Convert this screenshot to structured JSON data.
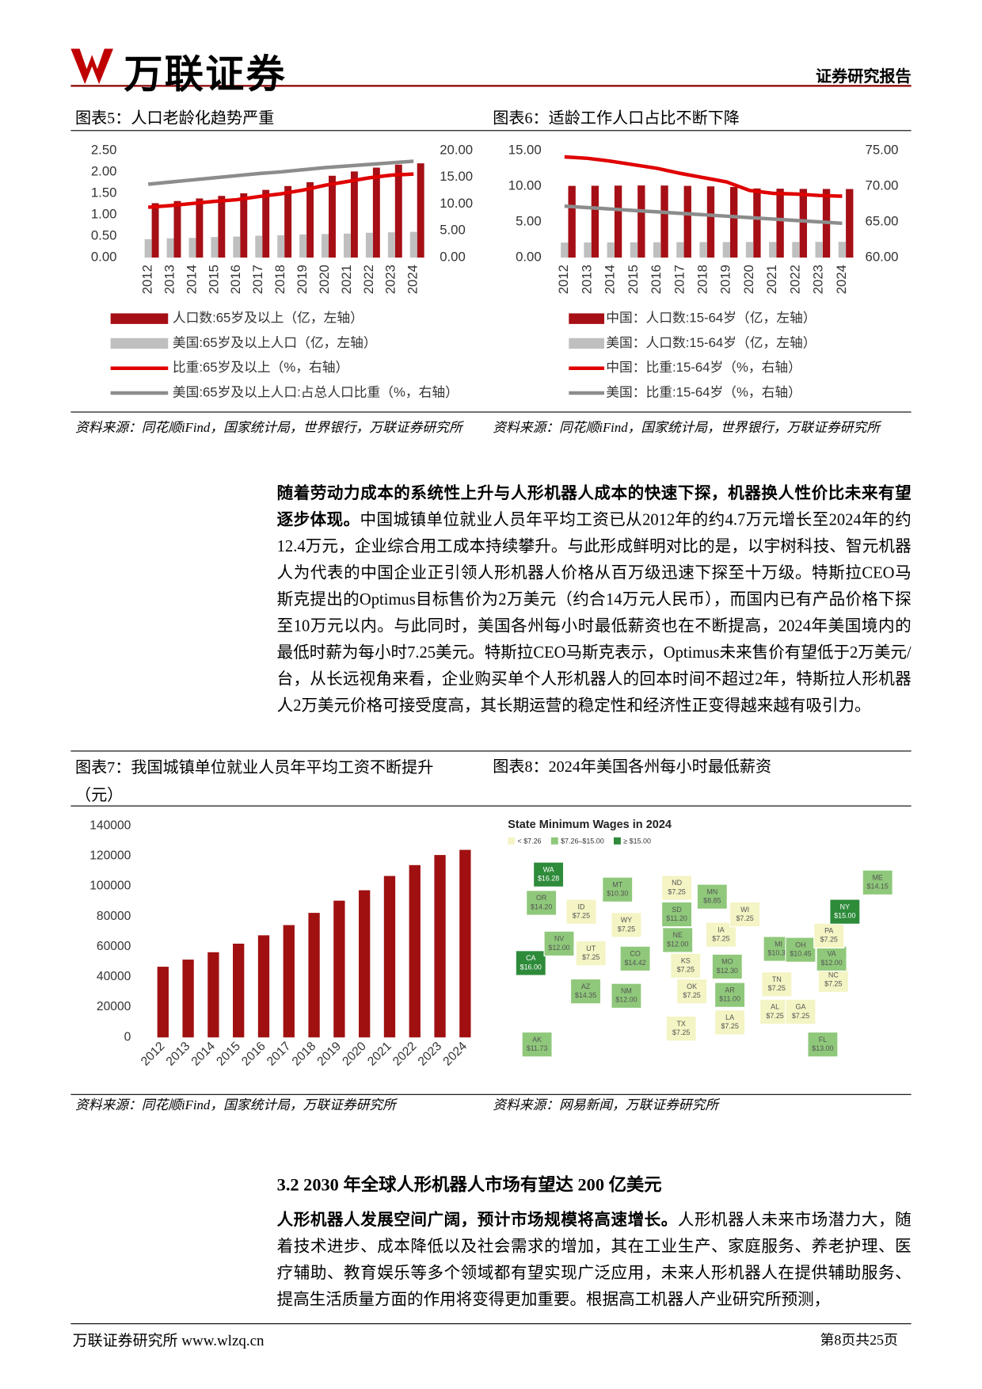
{
  "header": {
    "logo": "万联证券",
    "report_type": "证券研究报告"
  },
  "chart_data": [
    {
      "type": "combo",
      "title": "图表5：人口老龄化趋势严重",
      "source": "资料来源：同花顺iFind，国家统计局，世界银行，万联证券研究所",
      "categories": [
        "2012",
        "2013",
        "2014",
        "2015",
        "2016",
        "2017",
        "2018",
        "2019",
        "2020",
        "2021",
        "2022",
        "2023",
        "2024"
      ],
      "ylim": [
        0,
        2.5
      ],
      "yticks": [
        {
          "value": 0,
          "label": "0.00"
        },
        {
          "value": 0.5,
          "label": "0.50"
        },
        {
          "value": 1,
          "label": "1.00"
        },
        {
          "value": 1.5,
          "label": "1.50"
        },
        {
          "value": 2,
          "label": "2.00"
        },
        {
          "value": 2.5,
          "label": "2.50"
        }
      ],
      "y2lim": [
        0,
        20
      ],
      "y2ticks": [
        {
          "value": 0,
          "label": "0.00"
        },
        {
          "value": 5,
          "label": "5.00"
        },
        {
          "value": 10,
          "label": "10.00"
        },
        {
          "value": 15,
          "label": "15.00"
        },
        {
          "value": 20,
          "label": "20.00"
        }
      ],
      "series": [
        {
          "name": "人口数:65岁及以上（亿，左轴）",
          "type": "bar",
          "color": "#a50f15",
          "values": [
            1.27,
            1.32,
            1.38,
            1.44,
            1.5,
            1.58,
            1.67,
            1.76,
            1.91,
            2.01,
            2.1,
            2.17,
            2.2
          ]
        },
        {
          "name": "美国:65岁及以上人口（亿，左轴）",
          "type": "bar",
          "color": "#bfbfbf",
          "values": [
            0.43,
            0.45,
            0.46,
            0.48,
            0.49,
            0.51,
            0.52,
            0.54,
            0.55,
            0.56,
            0.58,
            0.59,
            0.6
          ]
        },
        {
          "name": "比重:65岁及以上（%，右轴）",
          "type": "line",
          "axis": "y2",
          "color": "#e00000",
          "values": [
            9.4,
            9.7,
            10.1,
            10.5,
            10.8,
            11.4,
            11.9,
            12.6,
            13.5,
            14.2,
            14.9,
            15.4,
            15.6
          ]
        },
        {
          "name": "美国:65岁及以上人口:占总人口比重（%，右轴）",
          "type": "line",
          "axis": "y2",
          "color": "#8c8c8c",
          "values": [
            13.7,
            14.1,
            14.5,
            14.9,
            15.3,
            15.7,
            16.0,
            16.4,
            16.8,
            17.1,
            17.4,
            17.7,
            18.0
          ]
        }
      ]
    },
    {
      "type": "combo",
      "title": "图表6：适龄工作人口占比不断下降",
      "source": "资料来源：同花顺iFind，国家统计局，世界银行，万联证券研究所",
      "categories": [
        "2012",
        "2013",
        "2014",
        "2015",
        "2016",
        "2017",
        "2018",
        "2019",
        "2020",
        "2021",
        "2022",
        "2023",
        "2024"
      ],
      "ylim": [
        0,
        15
      ],
      "yticks": [
        {
          "value": 0,
          "label": "0.00"
        },
        {
          "value": 5,
          "label": "5.00"
        },
        {
          "value": 10,
          "label": "10.00"
        },
        {
          "value": 15,
          "label": "15.00"
        }
      ],
      "y2lim": [
        60,
        75
      ],
      "y2ticks": [
        {
          "value": 60,
          "label": "60.00"
        },
        {
          "value": 65,
          "label": "65.00"
        },
        {
          "value": 70,
          "label": "70.00"
        },
        {
          "value": 75,
          "label": "75.00"
        }
      ],
      "series": [
        {
          "name": "中国：人口数:15-64岁（亿，左轴）",
          "type": "bar",
          "color": "#a50f15",
          "values": [
            10.04,
            10.06,
            10.08,
            10.1,
            10.09,
            10.04,
            9.97,
            9.89,
            9.68,
            9.65,
            9.62,
            9.61,
            9.6
          ]
        },
        {
          "name": "美国：人口数:15-64岁（亿，左轴）",
          "type": "bar",
          "color": "#bfbfbf",
          "values": [
            2.1,
            2.12,
            2.13,
            2.14,
            2.15,
            2.16,
            2.17,
            2.17,
            2.18,
            2.18,
            2.19,
            2.2,
            2.21
          ]
        },
        {
          "name": "中国：比重:15-64岁（%，右轴）",
          "type": "line",
          "axis": "y2",
          "color": "#e00000",
          "values": [
            74.1,
            73.9,
            73.5,
            73.0,
            72.5,
            71.8,
            71.2,
            70.6,
            69.4,
            69.0,
            68.9,
            68.7,
            68.6
          ]
        },
        {
          "name": "美国：比重:15-64岁（%，右轴）",
          "type": "line",
          "axis": "y2",
          "color": "#8c8c8c",
          "values": [
            67.2,
            67.0,
            66.8,
            66.6,
            66.4,
            66.2,
            66.0,
            65.8,
            65.6,
            65.4,
            65.2,
            65.0,
            64.8
          ]
        }
      ]
    },
    {
      "type": "bar",
      "title": "图表7：我国城镇单位就业人员年平均工资不断提升（元）",
      "source": "资料来源：同花顺iFind，国家统计局，万联证券研究所",
      "categories": [
        "2012",
        "2013",
        "2014",
        "2015",
        "2016",
        "2017",
        "2018",
        "2019",
        "2020",
        "2021",
        "2022",
        "2023",
        "2024"
      ],
      "values": [
        46769,
        51483,
        56360,
        62029,
        67569,
        74318,
        82413,
        90501,
        97379,
        106837,
        114029,
        120698,
        124110
      ],
      "color": "#a01010",
      "ylim": [
        0,
        140000
      ],
      "yticks": [
        0,
        20000,
        40000,
        60000,
        80000,
        100000,
        120000,
        140000
      ]
    }
  ],
  "map_figure": {
    "title": "图表8：2024年美国各州每小时最低薪资",
    "source": "资料来源：网易新闻，万联证券研究所",
    "map_title": "State Minimum Wages in 2024",
    "legend": [
      {
        "label": "< $7.26",
        "color": "#f4f4c4"
      },
      {
        "label": "$7.26–$15.00",
        "color": "#8fc87a"
      },
      {
        "label": "≥ $15.00",
        "color": "#2e8b3a"
      }
    ],
    "states": [
      {
        "abbr": "WA",
        "wage": "$16.28",
        "color": "#2e8b3a"
      },
      {
        "abbr": "OR",
        "wage": "$14.20",
        "color": "#8fc87a"
      },
      {
        "abbr": "CA",
        "wage": "$16.00",
        "color": "#2e8b3a"
      },
      {
        "abbr": "NV",
        "wage": "$12.00",
        "color": "#8fc87a"
      },
      {
        "abbr": "ID",
        "wage": "$7.25",
        "color": "#f4f4c4"
      },
      {
        "abbr": "MT",
        "wage": "$10.30",
        "color": "#8fc87a"
      },
      {
        "abbr": "WY",
        "wage": "$7.25",
        "color": "#f4f4c4"
      },
      {
        "abbr": "UT",
        "wage": "$7.25",
        "color": "#f4f4c4"
      },
      {
        "abbr": "AZ",
        "wage": "$14.35",
        "color": "#8fc87a"
      },
      {
        "abbr": "CO",
        "wage": "$14.42",
        "color": "#8fc87a"
      },
      {
        "abbr": "NM",
        "wage": "$12.00",
        "color": "#8fc87a"
      },
      {
        "abbr": "ND",
        "wage": "$7.25",
        "color": "#f4f4c4"
      },
      {
        "abbr": "SD",
        "wage": "$11.20",
        "color": "#8fc87a"
      },
      {
        "abbr": "NE",
        "wage": "$12.00",
        "color": "#8fc87a"
      },
      {
        "abbr": "KS",
        "wage": "$7.25",
        "color": "#f4f4c4"
      },
      {
        "abbr": "OK",
        "wage": "$7.25",
        "color": "#f4f4c4"
      },
      {
        "abbr": "TX",
        "wage": "$7.25",
        "color": "#f4f4c4"
      },
      {
        "abbr": "MN",
        "wage": "$8.85",
        "color": "#8fc87a"
      },
      {
        "abbr": "IA",
        "wage": "$7.25",
        "color": "#f4f4c4"
      },
      {
        "abbr": "MO",
        "wage": "$12.30",
        "color": "#8fc87a"
      },
      {
        "abbr": "AR",
        "wage": "$11.00",
        "color": "#8fc87a"
      },
      {
        "abbr": "LA",
        "wage": "$7.25",
        "color": "#f4f4c4"
      },
      {
        "abbr": "WI",
        "wage": "$7.25",
        "color": "#f4f4c4"
      },
      {
        "abbr": "MI",
        "wage": "$10.33",
        "color": "#8fc87a"
      },
      {
        "abbr": "OH",
        "wage": "$10.45",
        "color": "#8fc87a"
      },
      {
        "abbr": "TN",
        "wage": "$7.25",
        "color": "#f4f4c4"
      },
      {
        "abbr": "AL",
        "wage": "$7.25",
        "color": "#f4f4c4"
      },
      {
        "abbr": "GA",
        "wage": "$7.25",
        "color": "#f4f4c4"
      },
      {
        "abbr": "FL",
        "wage": "$13.00",
        "color": "#8fc87a"
      },
      {
        "abbr": "NC",
        "wage": "$7.25",
        "color": "#f4f4c4"
      },
      {
        "abbr": "VA",
        "wage": "$12.00",
        "color": "#8fc87a"
      },
      {
        "abbr": "PA",
        "wage": "$7.25",
        "color": "#f4f4c4"
      },
      {
        "abbr": "NY",
        "wage": "$15.00",
        "color": "#2e8b3a"
      },
      {
        "abbr": "ME",
        "wage": "$14.15",
        "color": "#8fc87a"
      },
      {
        "abbr": "AK",
        "wage": "$11.73",
        "color": "#8fc87a"
      }
    ]
  },
  "body": {
    "paragraphs": [
      {
        "bold": "随着劳动力成本的系统性上升与人形机器人成本的快速下探，机器换人性价比未来有望逐步体现。",
        "text": "中国城镇单位就业人员年平均工资已从2012年的约4.7万元增长至2024年的约12.4万元，企业综合用工成本持续攀升。与此形成鲜明对比的是，以宇树科技、智元机器人为代表的中国企业正引领人形机器人价格从百万级迅速下探至十万级。特斯拉CEO马斯克提出的Optimus目标售价为2万美元（约合14万元人民币），而国内已有产品价格下探至10万元以内。与此同时，美国各州每小时最低薪资也在不断提高，2024年美国境内的最低时薪为每小时7.25美元。特斯拉CEO马斯克表示，Optimus未来售价有望低于2万美元/台，从长远视角来看，企业购买单个人形机器人的回本时间不超过2年，特斯拉人形机器人2万美元价格可接受度高，其长期运营的稳定性和经济性正变得越来越有吸引力。"
      },
      {
        "bold": "人形机器人发展空间广阔，预计市场规模将高速增长。",
        "text": "人形机器人未来市场潜力大，随着技术进步、成本降低以及社会需求的增加，其在工业生产、家庭服务、养老护理、医疗辅助、教育娱乐等多个领域都有望实现广泛应用，未来人形机器人在提供辅助服务、提高生活质量方面的作用将变得更加重要。根据高工机器人产业研究所预测，"
      }
    ],
    "section_heading": "3.2 2030 年全球人形机器人市场有望达 200 亿美元"
  },
  "footer": {
    "left": "万联证券研究所 www.wlzq.cn",
    "right": "第8页共25页"
  }
}
